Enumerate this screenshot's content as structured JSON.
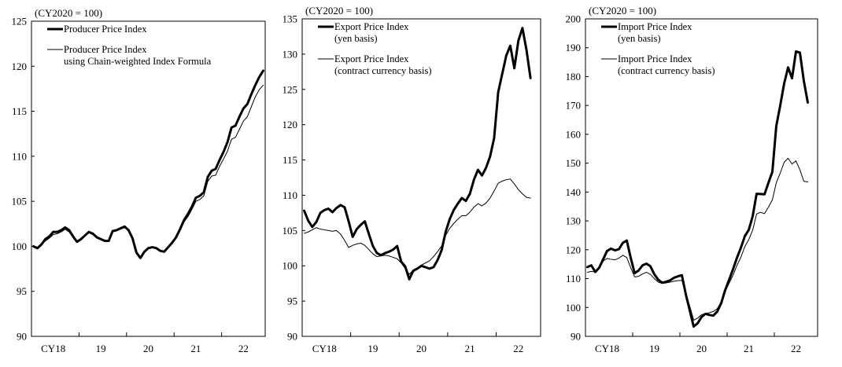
{
  "chart_data": [
    {
      "type": "line",
      "unit_note": "(CY2020 = 100)",
      "ylim": [
        90,
        125
      ],
      "yticks": [
        90,
        95,
        100,
        105,
        110,
        115,
        120,
        125
      ],
      "x_start_month": "2018-01",
      "x_end_month": "2022-11",
      "xtick_labels": [
        {
          "label": "CY18",
          "month": "2018-06"
        },
        {
          "label": "19",
          "month": "2019-06"
        },
        {
          "label": "20",
          "month": "2020-06"
        },
        {
          "label": "21",
          "month": "2021-06"
        },
        {
          "label": "22",
          "month": "2022-06"
        }
      ],
      "legend_position": "top-left",
      "series": [
        {
          "name": "Producer Price Index",
          "style": "thick",
          "legend_lines": [
            "Producer Price Index"
          ],
          "values": [
            100.0,
            99.8,
            100.2,
            100.8,
            101.1,
            101.6,
            101.6,
            101.8,
            102.1,
            101.8,
            101.1,
            100.5,
            100.8,
            101.2,
            101.6,
            101.4,
            101.0,
            100.8,
            100.6,
            100.6,
            101.7,
            101.8,
            102.0,
            102.2,
            101.8,
            100.9,
            99.3,
            98.7,
            99.4,
            99.8,
            99.9,
            99.8,
            99.5,
            99.4,
            99.9,
            100.4,
            101.0,
            101.9,
            102.9,
            103.6,
            104.4,
            105.4,
            105.6,
            106.0,
            107.7,
            108.4,
            108.6,
            109.6,
            110.5,
            111.6,
            113.2,
            113.4,
            114.4,
            115.3,
            115.8,
            116.9,
            117.9,
            118.8,
            119.5
          ]
        },
        {
          "name": "Producer Price Index using Chain-weighted Index Formula",
          "style": "thin",
          "legend_lines": [
            "Producer Price Index",
            "using Chain-weighted Index Formula"
          ],
          "values": [
            99.9,
            99.7,
            100.1,
            100.6,
            100.9,
            101.3,
            101.4,
            101.6,
            101.9,
            101.6,
            101.0,
            100.5,
            100.8,
            101.2,
            101.5,
            101.3,
            101.0,
            100.8,
            100.6,
            100.6,
            101.6,
            101.7,
            101.9,
            102.1,
            101.7,
            100.8,
            99.3,
            98.7,
            99.4,
            99.8,
            99.9,
            99.8,
            99.5,
            99.4,
            99.8,
            100.3,
            100.9,
            101.7,
            102.7,
            103.3,
            104.1,
            105.0,
            105.2,
            105.6,
            107.2,
            107.8,
            107.9,
            108.9,
            109.7,
            110.6,
            111.9,
            112.1,
            113.0,
            113.9,
            114.4,
            115.5,
            116.6,
            117.4,
            117.9
          ]
        }
      ]
    },
    {
      "type": "line",
      "unit_note": "(CY2020 = 100)",
      "ylim": [
        90,
        135
      ],
      "yticks": [
        90,
        95,
        100,
        105,
        110,
        115,
        120,
        125,
        130,
        135
      ],
      "x_start_month": "2018-01",
      "x_end_month": "2022-11",
      "xtick_labels": [
        {
          "label": "CY18",
          "month": "2018-06"
        },
        {
          "label": "19",
          "month": "2019-06"
        },
        {
          "label": "20",
          "month": "2020-06"
        },
        {
          "label": "21",
          "month": "2021-06"
        },
        {
          "label": "22",
          "month": "2022-06"
        }
      ],
      "legend_position": "top-left",
      "series": [
        {
          "name": "Export Price Index (yen basis)",
          "style": "thick",
          "legend_lines": [
            "Export Price Index",
            "(yen basis)"
          ],
          "values": [
            107.8,
            106.4,
            105.5,
            106.2,
            107.5,
            107.9,
            108.1,
            107.6,
            108.2,
            108.6,
            108.3,
            106.3,
            104.1,
            105.2,
            105.8,
            106.3,
            104.5,
            102.8,
            101.8,
            101.5,
            101.8,
            102.0,
            102.3,
            102.8,
            100.6,
            99.9,
            98.1,
            99.3,
            99.6,
            100.0,
            99.8,
            99.6,
            99.8,
            100.8,
            102.2,
            104.8,
            106.6,
            107.9,
            108.8,
            109.6,
            109.2,
            110.2,
            112.2,
            113.6,
            112.8,
            113.9,
            115.5,
            118.1,
            124.6,
            127.2,
            129.8,
            131.2,
            128.0,
            131.9,
            133.7,
            130.6,
            126.6
          ]
        },
        {
          "name": "Export Price Index (contract currency basis)",
          "style": "thin",
          "legend_lines": [
            "Export Price Index",
            "(contract currency basis)"
          ],
          "values": [
            104.6,
            104.8,
            105.1,
            105.4,
            105.2,
            105.1,
            105.0,
            104.9,
            105.0,
            104.5,
            103.6,
            102.6,
            102.9,
            103.1,
            103.2,
            102.9,
            102.3,
            101.7,
            101.3,
            101.4,
            101.5,
            101.4,
            101.2,
            101.0,
            100.4,
            99.6,
            98.8,
            99.4,
            99.7,
            100.1,
            100.4,
            100.7,
            101.3,
            102.0,
            102.8,
            104.3,
            105.3,
            106.0,
            106.6,
            107.1,
            107.1,
            107.6,
            108.3,
            108.8,
            108.5,
            108.9,
            109.6,
            110.6,
            111.7,
            112.0,
            112.2,
            112.3,
            111.6,
            110.8,
            110.2,
            109.7,
            109.6
          ]
        }
      ]
    },
    {
      "type": "line",
      "unit_note": "(CY2020 = 100)",
      "ylim": [
        90,
        200
      ],
      "yticks": [
        90,
        100,
        110,
        120,
        130,
        140,
        150,
        160,
        170,
        180,
        190,
        200
      ],
      "x_start_month": "2018-01",
      "x_end_month": "2022-11",
      "xtick_labels": [
        {
          "label": "CY18",
          "month": "2018-06"
        },
        {
          "label": "19",
          "month": "2019-06"
        },
        {
          "label": "20",
          "month": "2020-06"
        },
        {
          "label": "21",
          "month": "2021-06"
        },
        {
          "label": "22",
          "month": "2022-06"
        }
      ],
      "legend_position": "top-left",
      "series": [
        {
          "name": "Import Price Index (yen basis)",
          "style": "thick",
          "legend_lines": [
            "Import Price Index",
            "(yen basis)"
          ],
          "values": [
            114.0,
            114.6,
            112.3,
            113.8,
            116.7,
            119.6,
            120.4,
            119.8,
            120.2,
            122.4,
            123.2,
            117.2,
            111.9,
            112.8,
            114.6,
            115.2,
            114.3,
            111.5,
            109.6,
            108.6,
            108.9,
            109.4,
            110.3,
            110.8,
            111.2,
            104.6,
            99.0,
            93.4,
            94.5,
            96.7,
            97.8,
            97.4,
            97.2,
            98.6,
            101.5,
            106.0,
            109.6,
            113.2,
            117.2,
            120.7,
            124.7,
            126.9,
            131.6,
            139.4,
            139.3,
            139.2,
            143.2,
            147.0,
            162.9,
            170.0,
            177.6,
            183.2,
            179.4,
            188.7,
            188.3,
            178.5,
            171.0
          ]
        },
        {
          "name": "Import Price Index (contract currency basis)",
          "style": "thin",
          "legend_lines": [
            "Import Price Index",
            "(contract currency basis)"
          ],
          "values": [
            112.2,
            112.5,
            112.3,
            113.7,
            116.1,
            117.0,
            116.7,
            116.5,
            117.1,
            118.1,
            117.3,
            113.8,
            110.6,
            110.8,
            111.6,
            112.2,
            111.5,
            110.0,
            108.8,
            108.3,
            108.5,
            108.8,
            109.1,
            109.3,
            109.4,
            104.9,
            100.5,
            95.6,
            96.3,
            97.5,
            97.9,
            98.2,
            98.6,
            99.6,
            102.0,
            105.4,
            108.4,
            111.2,
            114.6,
            117.4,
            121.1,
            123.5,
            126.8,
            132.4,
            133.0,
            132.5,
            134.8,
            137.3,
            143.2,
            146.6,
            150.3,
            151.7,
            149.7,
            150.8,
            147.7,
            143.7,
            143.5
          ]
        }
      ]
    }
  ]
}
